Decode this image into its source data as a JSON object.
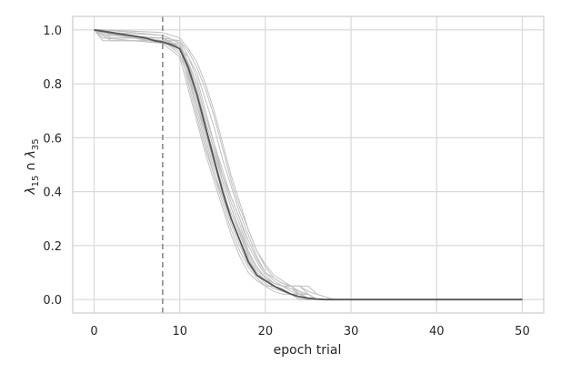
{
  "chart_data": {
    "type": "line",
    "title": "",
    "xlabel": "epoch trial",
    "ylabel_parts": {
      "symbol1": "λ",
      "sub1": "15",
      "op": " ∩ ",
      "symbol2": "λ",
      "sub2": "35"
    },
    "xlim": [
      -2.5,
      52.5
    ],
    "ylim": [
      -0.05,
      1.05
    ],
    "xticks": [
      0,
      10,
      20,
      30,
      40,
      50
    ],
    "yticks": [
      0.0,
      0.2,
      0.4,
      0.6,
      0.8,
      1.0
    ],
    "xtick_labels": [
      "0",
      "10",
      "20",
      "30",
      "40",
      "50"
    ],
    "ytick_labels": [
      "0.0",
      "0.2",
      "0.4",
      "0.6",
      "0.8",
      "1.0"
    ],
    "grid": true,
    "vertical_line": {
      "x": 8,
      "style": "dashed"
    },
    "colors": {
      "mean": "#555555",
      "trials": "#c0c0c0",
      "grid": "#d9d9d9",
      "vline": "#8a8a8a",
      "frame": "#cccccc"
    },
    "mean_series": {
      "x": [
        0,
        1,
        2,
        3,
        4,
        5,
        6,
        7,
        8,
        9,
        10,
        11,
        12,
        13,
        14,
        15,
        16,
        17,
        18,
        19,
        20,
        21,
        22,
        23,
        24,
        25,
        26,
        27,
        28,
        29,
        30,
        35,
        40,
        45,
        50
      ],
      "y": [
        1.0,
        0.995,
        0.99,
        0.985,
        0.98,
        0.975,
        0.97,
        0.96,
        0.955,
        0.945,
        0.93,
        0.86,
        0.76,
        0.64,
        0.52,
        0.4,
        0.3,
        0.22,
        0.14,
        0.09,
        0.07,
        0.05,
        0.035,
        0.02,
        0.01,
        0.005,
        0.002,
        0.0,
        0.0,
        0.0,
        0.0,
        0.0,
        0.0,
        0.0,
        0.0
      ]
    },
    "trial_series": [
      {
        "x": [
          0,
          1,
          8,
          10,
          11,
          12,
          13,
          14,
          15,
          16,
          17,
          18,
          19,
          20,
          21,
          22,
          23,
          24,
          25,
          26,
          28,
          50
        ],
        "y": [
          1.0,
          1.0,
          0.95,
          0.95,
          0.88,
          0.8,
          0.68,
          0.58,
          0.46,
          0.36,
          0.28,
          0.18,
          0.12,
          0.08,
          0.06,
          0.05,
          0.05,
          0.02,
          0.02,
          0.0,
          0.0,
          0.0
        ]
      },
      {
        "x": [
          0,
          1,
          8,
          10,
          11,
          12,
          13,
          14,
          15,
          16,
          17,
          18,
          19,
          20,
          21,
          22,
          23,
          24,
          25,
          26,
          28,
          50
        ],
        "y": [
          1.0,
          0.96,
          0.96,
          0.94,
          0.84,
          0.72,
          0.6,
          0.48,
          0.38,
          0.3,
          0.22,
          0.14,
          0.1,
          0.07,
          0.05,
          0.04,
          0.02,
          0.02,
          0.0,
          0.0,
          0.0,
          0.0
        ]
      },
      {
        "x": [
          0,
          2,
          8,
          10,
          11,
          12,
          13,
          14,
          15,
          16,
          17,
          18,
          19,
          20,
          21,
          22,
          23,
          24,
          25,
          26,
          28,
          50
        ],
        "y": [
          1.0,
          0.98,
          0.97,
          0.93,
          0.9,
          0.84,
          0.74,
          0.64,
          0.52,
          0.42,
          0.32,
          0.24,
          0.16,
          0.1,
          0.08,
          0.06,
          0.05,
          0.05,
          0.02,
          0.0,
          0.0,
          0.0
        ]
      },
      {
        "x": [
          0,
          1,
          8,
          10,
          11,
          12,
          13,
          14,
          15,
          16,
          17,
          18,
          19,
          20,
          21,
          22,
          23,
          24,
          25,
          26,
          28,
          50
        ],
        "y": [
          1.0,
          1.0,
          0.98,
          0.95,
          0.86,
          0.76,
          0.64,
          0.54,
          0.44,
          0.34,
          0.26,
          0.18,
          0.12,
          0.08,
          0.05,
          0.03,
          0.02,
          0.02,
          0.02,
          0.0,
          0.0,
          0.0
        ]
      },
      {
        "x": [
          0,
          2,
          8,
          10,
          11,
          12,
          13,
          14,
          15,
          16,
          17,
          18,
          19,
          20,
          21,
          22,
          23,
          24,
          25,
          26,
          28,
          50
        ],
        "y": [
          1.0,
          0.96,
          0.96,
          0.91,
          0.82,
          0.7,
          0.58,
          0.46,
          0.36,
          0.26,
          0.18,
          0.12,
          0.08,
          0.05,
          0.05,
          0.03,
          0.02,
          0.0,
          0.0,
          0.0,
          0.0,
          0.0
        ]
      },
      {
        "x": [
          0,
          1,
          8,
          10,
          11,
          12,
          13,
          14,
          15,
          16,
          17,
          18,
          19,
          20,
          21,
          22,
          23,
          24,
          25,
          26,
          28,
          50
        ],
        "y": [
          1.0,
          0.97,
          0.97,
          0.96,
          0.92,
          0.86,
          0.78,
          0.68,
          0.56,
          0.44,
          0.34,
          0.26,
          0.18,
          0.12,
          0.08,
          0.06,
          0.05,
          0.05,
          0.05,
          0.02,
          0.0,
          0.0
        ]
      },
      {
        "x": [
          0,
          1,
          8,
          10,
          11,
          12,
          13,
          14,
          15,
          16,
          17,
          18,
          19,
          20,
          21,
          22,
          23,
          24,
          25,
          26,
          28,
          50
        ],
        "y": [
          1.0,
          0.99,
          0.95,
          0.94,
          0.8,
          0.68,
          0.56,
          0.46,
          0.38,
          0.28,
          0.2,
          0.13,
          0.09,
          0.06,
          0.04,
          0.03,
          0.02,
          0.0,
          0.0,
          0.0,
          0.0,
          0.0
        ]
      },
      {
        "x": [
          0,
          2,
          8,
          10,
          11,
          12,
          13,
          14,
          15,
          16,
          17,
          18,
          19,
          20,
          21,
          22,
          23,
          24,
          25,
          26,
          28,
          50
        ],
        "y": [
          1.0,
          0.98,
          0.96,
          0.92,
          0.88,
          0.78,
          0.66,
          0.56,
          0.46,
          0.38,
          0.3,
          0.2,
          0.14,
          0.09,
          0.06,
          0.05,
          0.04,
          0.03,
          0.02,
          0.0,
          0.0,
          0.0
        ]
      },
      {
        "x": [
          0,
          1,
          8,
          10,
          11,
          12,
          13,
          14,
          15,
          16,
          17,
          18,
          19,
          20,
          21,
          22,
          23,
          24,
          25,
          26,
          28,
          50
        ],
        "y": [
          1.0,
          0.99,
          0.96,
          0.96,
          0.9,
          0.82,
          0.7,
          0.58,
          0.48,
          0.38,
          0.3,
          0.22,
          0.15,
          0.1,
          0.07,
          0.05,
          0.04,
          0.02,
          0.02,
          0.0,
          0.0,
          0.0
        ]
      },
      {
        "x": [
          0,
          1,
          8,
          10,
          11,
          12,
          13,
          14,
          15,
          16,
          17,
          18,
          19,
          20,
          21,
          22,
          23,
          24,
          25,
          26,
          28,
          50
        ],
        "y": [
          1.0,
          0.98,
          0.97,
          0.93,
          0.85,
          0.74,
          0.62,
          0.5,
          0.4,
          0.32,
          0.24,
          0.16,
          0.11,
          0.08,
          0.06,
          0.05,
          0.05,
          0.03,
          0.0,
          0.0,
          0.0,
          0.0
        ]
      },
      {
        "x": [
          0,
          2,
          8,
          10,
          11,
          12,
          13,
          14,
          15,
          16,
          17,
          18,
          19,
          20,
          21,
          22,
          23,
          24,
          25,
          26,
          28,
          50
        ],
        "y": [
          1.0,
          0.99,
          0.98,
          0.95,
          0.83,
          0.72,
          0.62,
          0.52,
          0.42,
          0.3,
          0.22,
          0.15,
          0.1,
          0.07,
          0.05,
          0.03,
          0.02,
          0.0,
          0.0,
          0.0,
          0.0,
          0.0
        ]
      },
      {
        "x": [
          0,
          1,
          8,
          10,
          11,
          12,
          13,
          14,
          15,
          16,
          17,
          18,
          19,
          20,
          21,
          22,
          23,
          24,
          25,
          26,
          28,
          50
        ],
        "y": [
          1.0,
          1.0,
          0.99,
          0.97,
          0.93,
          0.88,
          0.8,
          0.7,
          0.58,
          0.46,
          0.36,
          0.26,
          0.18,
          0.13,
          0.09,
          0.07,
          0.05,
          0.05,
          0.03,
          0.02,
          0.0,
          0.0
        ]
      },
      {
        "x": [
          0,
          1,
          8,
          10,
          11,
          12,
          13,
          14,
          15,
          16,
          17,
          18,
          19,
          20,
          21,
          22,
          23,
          24,
          25,
          26,
          28,
          50
        ],
        "y": [
          1.0,
          0.97,
          0.95,
          0.9,
          0.78,
          0.66,
          0.54,
          0.44,
          0.34,
          0.24,
          0.16,
          0.1,
          0.07,
          0.05,
          0.03,
          0.02,
          0.02,
          0.0,
          0.0,
          0.0,
          0.0,
          0.0
        ]
      },
      {
        "x": [
          0,
          2,
          8,
          10,
          11,
          12,
          13,
          14,
          15,
          16,
          17,
          18,
          19,
          20,
          21,
          22,
          23,
          24,
          25,
          26,
          28,
          50
        ],
        "y": [
          1.0,
          0.97,
          0.97,
          0.94,
          0.87,
          0.76,
          0.66,
          0.56,
          0.44,
          0.34,
          0.25,
          0.17,
          0.12,
          0.08,
          0.06,
          0.05,
          0.03,
          0.02,
          0.0,
          0.0,
          0.0,
          0.0
        ]
      }
    ]
  }
}
